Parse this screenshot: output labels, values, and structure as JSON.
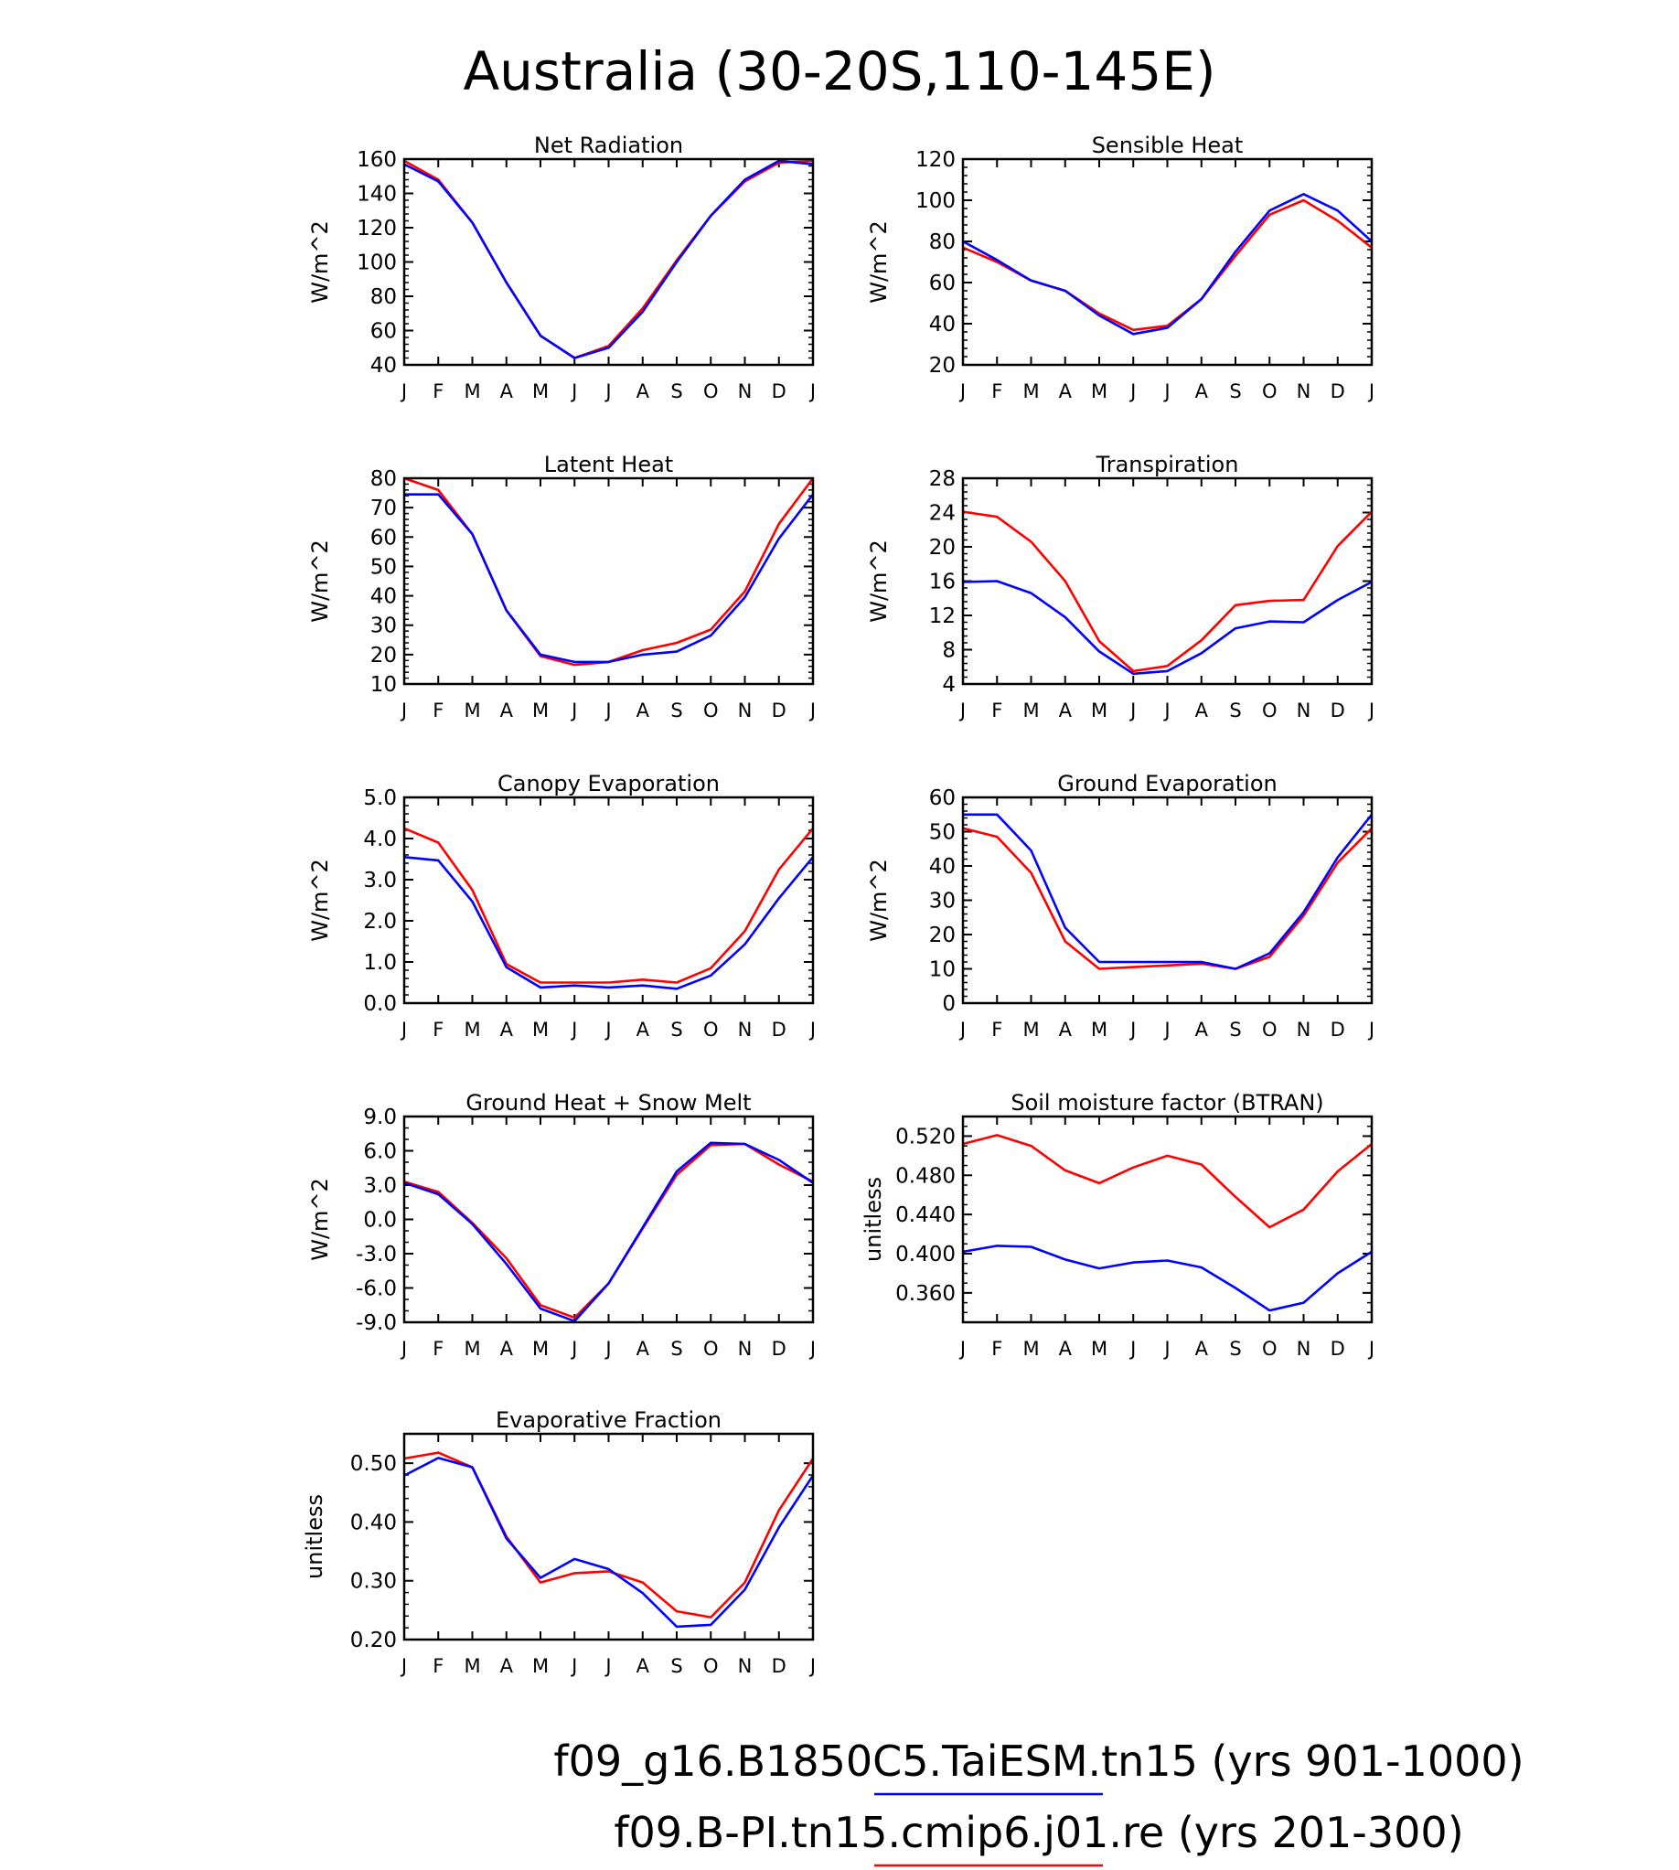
{
  "page_title": "Australia (30-20S,110-145E)",
  "legend": [
    {
      "label": "f09_g16.B1850C5.TaiESM.tn15 (yrs 901-1000)",
      "color": "#0000ff"
    },
    {
      "label": "f09.B-PI.tn15.cmip6.j01.re (yrs 201-300)",
      "color": "#ff0000"
    }
  ],
  "chart_data": [
    {
      "type": "line",
      "title": "Net Radiation",
      "ylabel": "W/m^2",
      "categories": [
        "J",
        "F",
        "M",
        "A",
        "M",
        "J",
        "J",
        "A",
        "S",
        "O",
        "N",
        "D",
        "J"
      ],
      "ylim": [
        40,
        160
      ],
      "yticks": [
        40,
        60,
        80,
        100,
        120,
        140,
        160
      ],
      "ytick_labels": [
        "40",
        "60",
        "80",
        "100",
        "120",
        "140",
        "160"
      ],
      "yminor": 4,
      "series": [
        {
          "color": "#ff0000",
          "values": [
            159,
            148,
            123,
            88,
            57,
            44,
            51,
            73,
            101,
            127,
            147,
            158,
            159
          ]
        },
        {
          "color": "#0000ff",
          "values": [
            157,
            147,
            123,
            88,
            57,
            44,
            50,
            71,
            100,
            127,
            148,
            159,
            157
          ]
        }
      ]
    },
    {
      "type": "line",
      "title": "Sensible Heat",
      "ylabel": "W/m^2",
      "categories": [
        "J",
        "F",
        "M",
        "A",
        "M",
        "J",
        "J",
        "A",
        "S",
        "O",
        "N",
        "D",
        "J"
      ],
      "ylim": [
        20,
        120
      ],
      "yticks": [
        20,
        40,
        60,
        80,
        100,
        120
      ],
      "ytick_labels": [
        "20",
        "40",
        "60",
        "80",
        "100",
        "120"
      ],
      "yminor": 4,
      "series": [
        {
          "color": "#ff0000",
          "values": [
            77,
            70,
            61,
            56,
            45,
            37,
            39,
            52,
            73,
            93,
            100,
            90,
            77
          ]
        },
        {
          "color": "#0000ff",
          "values": [
            80,
            71,
            61,
            56,
            44,
            35,
            38,
            52,
            75,
            95,
            103,
            95,
            80
          ]
        }
      ]
    },
    {
      "type": "line",
      "title": "Latent Heat",
      "ylabel": "W/m^2",
      "categories": [
        "J",
        "F",
        "M",
        "A",
        "M",
        "J",
        "J",
        "A",
        "S",
        "O",
        "N",
        "D",
        "J"
      ],
      "ylim": [
        10,
        80
      ],
      "yticks": [
        10,
        20,
        30,
        40,
        50,
        60,
        70,
        80
      ],
      "ytick_labels": [
        "10",
        "20",
        "30",
        "40",
        "50",
        "60",
        "70",
        "80"
      ],
      "yminor": 4,
      "series": [
        {
          "color": "#ff0000",
          "values": [
            80,
            76,
            61,
            35,
            19.5,
            16.5,
            17.5,
            21.5,
            24,
            28.5,
            41.5,
            64.5,
            80
          ]
        },
        {
          "color": "#0000ff",
          "values": [
            74.5,
            74.5,
            61,
            35,
            20,
            17.5,
            17.5,
            20,
            21,
            26.5,
            39.5,
            59.5,
            74.5
          ]
        }
      ]
    },
    {
      "type": "line",
      "title": "Transpiration",
      "ylabel": "W/m^2",
      "categories": [
        "J",
        "F",
        "M",
        "A",
        "M",
        "J",
        "J",
        "A",
        "S",
        "O",
        "N",
        "D",
        "J"
      ],
      "ylim": [
        4,
        28
      ],
      "yticks": [
        4,
        8,
        12,
        16,
        20,
        24,
        28
      ],
      "ytick_labels": [
        "4",
        "8",
        "12",
        "16",
        "20",
        "24",
        "28"
      ],
      "yminor": 4,
      "series": [
        {
          "color": "#ff0000",
          "values": [
            24.1,
            23.5,
            20.6,
            16,
            9,
            5.5,
            6.1,
            9.1,
            13.2,
            13.7,
            13.8,
            20.1,
            24.1
          ]
        },
        {
          "color": "#0000ff",
          "values": [
            15.9,
            16,
            14.6,
            11.8,
            7.8,
            5.2,
            5.5,
            7.6,
            10.5,
            11.3,
            11.2,
            13.8,
            15.9
          ]
        }
      ]
    },
    {
      "type": "line",
      "title": "Canopy Evaporation",
      "ylabel": "W/m^2",
      "categories": [
        "J",
        "F",
        "M",
        "A",
        "M",
        "J",
        "J",
        "A",
        "S",
        "O",
        "N",
        "D",
        "J"
      ],
      "ylim": [
        0,
        5
      ],
      "yticks": [
        0,
        1,
        2,
        3,
        4,
        5
      ],
      "ytick_labels": [
        "0.0",
        "1.0",
        "2.0",
        "3.0",
        "4.0",
        "5.0"
      ],
      "yminor": 4,
      "series": [
        {
          "color": "#ff0000",
          "values": [
            4.25,
            3.9,
            2.75,
            0.95,
            0.5,
            0.5,
            0.5,
            0.57,
            0.5,
            0.85,
            1.75,
            3.25,
            4.25
          ]
        },
        {
          "color": "#0000ff",
          "values": [
            3.55,
            3.47,
            2.47,
            0.87,
            0.38,
            0.43,
            0.38,
            0.43,
            0.35,
            0.67,
            1.43,
            2.55,
            3.55
          ]
        }
      ]
    },
    {
      "type": "line",
      "title": "Ground Evaporation",
      "ylabel": "W/m^2",
      "categories": [
        "J",
        "F",
        "M",
        "A",
        "M",
        "J",
        "J",
        "A",
        "S",
        "O",
        "N",
        "D",
        "J"
      ],
      "ylim": [
        0,
        60
      ],
      "yticks": [
        0,
        10,
        20,
        30,
        40,
        50,
        60
      ],
      "ytick_labels": [
        "0",
        "10",
        "20",
        "30",
        "40",
        "50",
        "60"
      ],
      "yminor": 4,
      "series": [
        {
          "color": "#ff0000",
          "values": [
            51,
            48.5,
            38,
            18,
            10,
            10.5,
            11,
            11.5,
            10,
            13.5,
            25.5,
            41,
            51
          ]
        },
        {
          "color": "#0000ff",
          "values": [
            55,
            55,
            44.5,
            22,
            12,
            12,
            12,
            12,
            10,
            14.5,
            26.5,
            42.5,
            55
          ]
        }
      ]
    },
    {
      "type": "line",
      "title": "Ground Heat + Snow Melt",
      "ylabel": "W/m^2",
      "categories": [
        "J",
        "F",
        "M",
        "A",
        "M",
        "J",
        "J",
        "A",
        "S",
        "O",
        "N",
        "D",
        "J"
      ],
      "ylim": [
        -9,
        9
      ],
      "yticks": [
        -9,
        -6,
        -3,
        0,
        3,
        6,
        9
      ],
      "ytick_labels": [
        "-9.0",
        "-6.0",
        "-3.0",
        "0.0",
        "3.0",
        "6.0",
        "9.0"
      ],
      "yminor": 2,
      "series": [
        {
          "color": "#ff0000",
          "values": [
            3.3,
            2.4,
            -0.3,
            -3.4,
            -7.5,
            -8.6,
            -5.6,
            -0.8,
            3.9,
            6.5,
            6.6,
            4.8,
            3.3
          ]
        },
        {
          "color": "#0000ff",
          "values": [
            3.2,
            2.2,
            -0.4,
            -3.9,
            -7.8,
            -8.9,
            -5.6,
            -0.7,
            4.2,
            6.7,
            6.6,
            5.2,
            3.2
          ]
        }
      ]
    },
    {
      "type": "line",
      "title": "Soil moisture factor (BTRAN)",
      "ylabel": "unitless",
      "categories": [
        "J",
        "F",
        "M",
        "A",
        "M",
        "J",
        "J",
        "A",
        "S",
        "O",
        "N",
        "D",
        "J"
      ],
      "ylim": [
        0.33,
        0.54
      ],
      "yticks": [
        0.36,
        0.4,
        0.44,
        0.48,
        0.52
      ],
      "ytick_labels": [
        "0.360",
        "0.400",
        "0.440",
        "0.480",
        "0.520"
      ],
      "yminor": 3,
      "yminor_step": 0.01,
      "series": [
        {
          "color": "#ff0000",
          "values": [
            0.512,
            0.521,
            0.51,
            0.485,
            0.472,
            0.488,
            0.5,
            0.491,
            0.458,
            0.427,
            0.445,
            0.484,
            0.512
          ]
        },
        {
          "color": "#0000ff",
          "values": [
            0.402,
            0.408,
            0.407,
            0.394,
            0.385,
            0.391,
            0.393,
            0.386,
            0.365,
            0.342,
            0.35,
            0.38,
            0.402
          ]
        }
      ]
    },
    {
      "type": "line",
      "title": "Evaporative Fraction",
      "ylabel": "unitless",
      "categories": [
        "J",
        "F",
        "M",
        "A",
        "M",
        "J",
        "J",
        "A",
        "S",
        "O",
        "N",
        "D",
        "J"
      ],
      "ylim": [
        0.2,
        0.55
      ],
      "yticks": [
        0.2,
        0.3,
        0.4,
        0.5
      ],
      "ytick_labels": [
        "0.20",
        "0.30",
        "0.40",
        "0.50"
      ],
      "yminor": 4,
      "series": [
        {
          "color": "#ff0000",
          "values": [
            0.508,
            0.518,
            0.493,
            0.375,
            0.297,
            0.313,
            0.316,
            0.297,
            0.248,
            0.238,
            0.297,
            0.42,
            0.508
          ]
        },
        {
          "color": "#0000ff",
          "values": [
            0.479,
            0.509,
            0.493,
            0.372,
            0.305,
            0.337,
            0.32,
            0.279,
            0.222,
            0.225,
            0.285,
            0.391,
            0.479
          ]
        }
      ]
    }
  ]
}
